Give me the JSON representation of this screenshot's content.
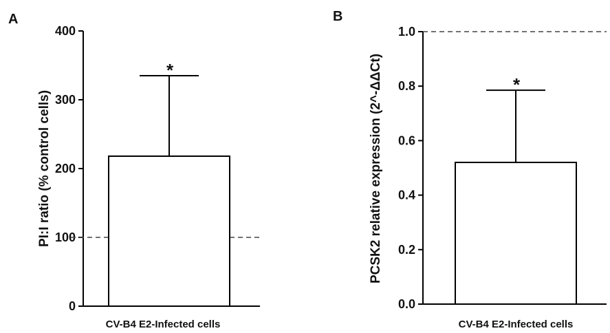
{
  "chart_data": [
    {
      "type": "bar",
      "panel_label": "A",
      "categories": [
        "CV-B4 E2-Infected cells"
      ],
      "values": [
        218
      ],
      "error_upper": [
        335
      ],
      "reference_line": 100,
      "significance": "*",
      "ylabel": "PI:I ratio (% control cells)",
      "xlabel": "CV-B4 E2-Infected cells",
      "ylim": [
        0,
        400
      ],
      "yticks": [
        0,
        100,
        200,
        300,
        400
      ],
      "ytick_labels": [
        "0",
        "100",
        "200",
        "300",
        "400"
      ],
      "grid": false
    },
    {
      "type": "bar",
      "panel_label": "B",
      "categories": [
        "CV-B4 E2-Infected cells"
      ],
      "values": [
        0.52
      ],
      "error_upper": [
        0.785
      ],
      "reference_line": 1.0,
      "significance": "*",
      "ylabel": "PCSK2 relative expression (2^-ΔΔCt)",
      "xlabel": "CV-B4 E2-Infected cells",
      "ylim": [
        0,
        1.0
      ],
      "yticks": [
        0,
        0.2,
        0.4,
        0.6,
        0.8,
        1.0
      ],
      "ytick_labels": [
        "0.0",
        "0.2",
        "0.4",
        "0.6",
        "0.8",
        "1.0"
      ],
      "grid": false
    }
  ]
}
